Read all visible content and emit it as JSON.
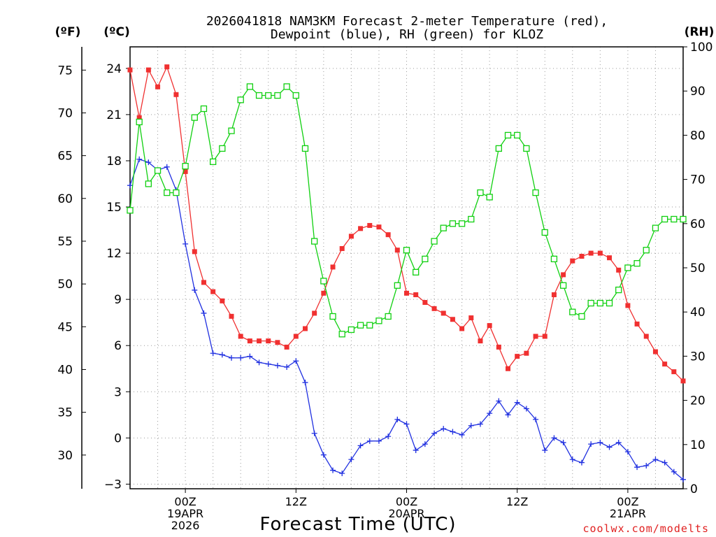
{
  "chart_data": {
    "type": "line",
    "title_line1": "2026041818 NAM3KM Forecast 2-meter Temperature (red),",
    "title_line2": "Dewpoint (blue), RH (green) for KLOZ",
    "xlabel": "Forecast Time (UTC)",
    "watermark": "coolwx.com/modelts",
    "left_outer_unit": "(ºF)",
    "left_inner_unit": "(ºC)",
    "right_unit": "(RH)",
    "fahrenheit_ticks": [
      30,
      35,
      40,
      45,
      50,
      55,
      60,
      65,
      70,
      75
    ],
    "celsius_ticks": [
      -3,
      0,
      3,
      6,
      9,
      12,
      15,
      18,
      21,
      24
    ],
    "rh_ticks": [
      0,
      10,
      20,
      30,
      40,
      50,
      60,
      70,
      80,
      90,
      100
    ],
    "celsius_range": [
      -3.3,
      25.4
    ],
    "rh_range": [
      0,
      100
    ],
    "forecast_hour_range": [
      0,
      60
    ],
    "x_ticks": [
      {
        "hour": 6,
        "lines": [
          "00Z",
          "19APR",
          "2026"
        ]
      },
      {
        "hour": 18,
        "lines": [
          "12Z"
        ]
      },
      {
        "hour": 30,
        "lines": [
          "00Z",
          "20APR"
        ]
      },
      {
        "hour": 42,
        "lines": [
          "12Z"
        ]
      },
      {
        "hour": 54,
        "lines": [
          "00Z",
          "21APR"
        ]
      }
    ],
    "hours": [
      0,
      1,
      2,
      3,
      4,
      5,
      6,
      7,
      8,
      9,
      10,
      11,
      12,
      13,
      14,
      15,
      16,
      17,
      18,
      19,
      20,
      21,
      22,
      23,
      24,
      25,
      26,
      27,
      28,
      29,
      30,
      31,
      32,
      33,
      34,
      35,
      36,
      37,
      38,
      39,
      40,
      41,
      42,
      43,
      44,
      45,
      46,
      47,
      48,
      49,
      50,
      51,
      52,
      53,
      54,
      55,
      56,
      57,
      58,
      59,
      60
    ],
    "series": [
      {
        "name": "Temperature",
        "units": "°C",
        "color": "#f03030",
        "marker": "filled-square",
        "values": [
          23.9,
          20.8,
          23.9,
          22.8,
          24.1,
          22.3,
          17.3,
          12.1,
          10.1,
          9.5,
          8.9,
          7.9,
          6.6,
          6.3,
          6.3,
          6.3,
          6.2,
          5.9,
          6.6,
          7.1,
          8.1,
          9.4,
          11.1,
          12.3,
          13.1,
          13.6,
          13.8,
          13.7,
          13.2,
          12.2,
          9.4,
          9.3,
          8.8,
          8.4,
          8.1,
          7.7,
          7.1,
          7.8,
          6.3,
          7.3,
          5.9,
          4.5,
          5.3,
          5.5,
          6.6,
          6.6,
          9.3,
          10.6,
          11.5,
          11.8,
          12.0,
          12.0,
          11.7,
          10.9,
          8.6,
          7.4,
          6.6,
          5.6,
          4.8,
          4.3,
          3.7
        ]
      },
      {
        "name": "Dewpoint",
        "units": "°C",
        "color": "#2030e0",
        "marker": "plus",
        "values": [
          16.4,
          18.1,
          17.9,
          17.4,
          17.6,
          16.1,
          12.6,
          9.6,
          8.1,
          5.5,
          5.4,
          5.2,
          5.2,
          5.3,
          4.9,
          4.8,
          4.7,
          4.6,
          5.0,
          3.6,
          0.3,
          -1.1,
          -2.1,
          -2.3,
          -1.4,
          -0.5,
          -0.2,
          -0.2,
          0.1,
          1.2,
          0.9,
          -0.8,
          -0.4,
          0.3,
          0.6,
          0.4,
          0.2,
          0.8,
          0.9,
          1.6,
          2.4,
          1.5,
          2.3,
          1.9,
          1.2,
          -0.8,
          -0.0,
          -0.3,
          -1.4,
          -1.6,
          -0.4,
          -0.3,
          -0.6,
          -0.3,
          -0.9,
          -1.9,
          -1.8,
          -1.4,
          -1.6,
          -2.2,
          -2.7
        ]
      },
      {
        "name": "RH",
        "units": "%",
        "color": "#10d010",
        "marker": "open-square",
        "values": [
          63,
          83,
          69,
          72,
          67,
          67,
          73,
          84,
          86,
          74,
          77,
          81,
          88,
          91,
          89,
          89,
          89,
          91,
          89,
          77,
          56,
          47,
          39,
          35,
          36,
          37,
          37,
          38,
          39,
          46,
          54,
          49,
          52,
          56,
          59,
          60,
          60,
          61,
          67,
          66,
          77,
          80,
          80,
          77,
          67,
          58,
          52,
          46,
          40,
          39,
          42,
          42,
          42,
          45,
          50,
          51,
          54,
          59,
          61,
          61,
          61
        ]
      }
    ]
  }
}
